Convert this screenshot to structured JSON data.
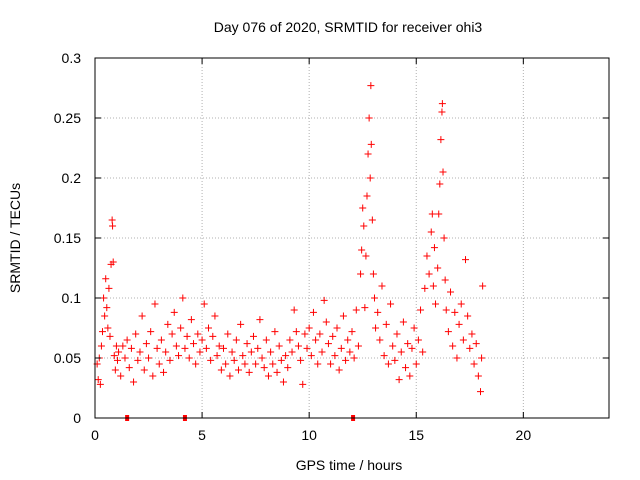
{
  "chart_data": {
    "type": "scatter",
    "title": "Day 076 of 2020, SRMTID for receiver ohi3",
    "xlabel": "GPS time / hours",
    "ylabel": "SRMTID / TECUs",
    "xlim": [
      0,
      24
    ],
    "ylim": [
      0,
      0.3
    ],
    "xticks": [
      0,
      5,
      10,
      15,
      20
    ],
    "xtick_labels": [
      "0",
      "5",
      "10",
      "15",
      "20"
    ],
    "yticks": [
      0,
      0.05,
      0.1,
      0.15,
      0.2,
      0.25,
      0.3
    ],
    "ytick_labels": [
      "0",
      "0.05",
      "0.1",
      "0.15",
      "0.2",
      "0.25",
      "0.3"
    ],
    "grid": true,
    "marker": "+",
    "color": "#ff0000",
    "series": [
      {
        "name": "SRMTID",
        "points": [
          [
            0.1,
            0.045
          ],
          [
            0.15,
            0.032
          ],
          [
            0.2,
            0.05
          ],
          [
            0.25,
            0.028
          ],
          [
            0.3,
            0.06
          ],
          [
            0.35,
            0.072
          ],
          [
            0.4,
            0.1
          ],
          [
            0.45,
            0.085
          ],
          [
            0.5,
            0.116
          ],
          [
            0.55,
            0.092
          ],
          [
            0.6,
            0.075
          ],
          [
            0.65,
            0.108
          ],
          [
            0.7,
            0.068
          ],
          [
            0.75,
            0.128
          ],
          [
            0.8,
            0.165
          ],
          [
            0.82,
            0.16
          ],
          [
            0.85,
            0.13
          ],
          [
            0.9,
            0.052
          ],
          [
            0.95,
            0.04
          ],
          [
            1.0,
            0.06
          ],
          [
            1.05,
            0.048
          ],
          [
            1.1,
            0.055
          ],
          [
            1.2,
            0.035
          ],
          [
            1.3,
            0.06
          ],
          [
            1.4,
            0.05
          ],
          [
            1.5,
            0.065
          ],
          [
            1.6,
            0.042
          ],
          [
            1.7,
            0.058
          ],
          [
            1.8,
            0.03
          ],
          [
            1.9,
            0.07
          ],
          [
            2.0,
            0.048
          ],
          [
            2.1,
            0.055
          ],
          [
            2.2,
            0.085
          ],
          [
            2.3,
            0.04
          ],
          [
            2.4,
            0.062
          ],
          [
            2.5,
            0.05
          ],
          [
            2.6,
            0.072
          ],
          [
            2.7,
            0.035
          ],
          [
            2.8,
            0.095
          ],
          [
            2.9,
            0.058
          ],
          [
            3.0,
            0.045
          ],
          [
            3.1,
            0.065
          ],
          [
            3.2,
            0.038
          ],
          [
            3.3,
            0.055
          ],
          [
            3.4,
            0.078
          ],
          [
            3.5,
            0.048
          ],
          [
            3.6,
            0.07
          ],
          [
            3.7,
            0.088
          ],
          [
            3.8,
            0.06
          ],
          [
            3.9,
            0.052
          ],
          [
            4.0,
            0.075
          ],
          [
            4.1,
            0.1
          ],
          [
            4.2,
            0.058
          ],
          [
            4.3,
            0.068
          ],
          [
            4.4,
            0.05
          ],
          [
            4.5,
            0.082
          ],
          [
            4.6,
            0.062
          ],
          [
            4.7,
            0.045
          ],
          [
            4.8,
            0.07
          ],
          [
            4.9,
            0.055
          ],
          [
            5.0,
            0.065
          ],
          [
            5.1,
            0.095
          ],
          [
            5.2,
            0.058
          ],
          [
            5.3,
            0.075
          ],
          [
            5.4,
            0.048
          ],
          [
            5.5,
            0.068
          ],
          [
            5.6,
            0.085
          ],
          [
            5.7,
            0.052
          ],
          [
            5.8,
            0.06
          ],
          [
            5.9,
            0.04
          ],
          [
            6.0,
            0.058
          ],
          [
            6.1,
            0.045
          ],
          [
            6.2,
            0.07
          ],
          [
            6.3,
            0.035
          ],
          [
            6.4,
            0.055
          ],
          [
            6.5,
            0.048
          ],
          [
            6.6,
            0.065
          ],
          [
            6.7,
            0.04
          ],
          [
            6.8,
            0.078
          ],
          [
            6.9,
            0.052
          ],
          [
            7.0,
            0.045
          ],
          [
            7.1,
            0.062
          ],
          [
            7.2,
            0.038
          ],
          [
            7.3,
            0.055
          ],
          [
            7.4,
            0.068
          ],
          [
            7.5,
            0.045
          ],
          [
            7.6,
            0.058
          ],
          [
            7.7,
            0.082
          ],
          [
            7.8,
            0.05
          ],
          [
            7.9,
            0.042
          ],
          [
            8.0,
            0.065
          ],
          [
            8.1,
            0.035
          ],
          [
            8.2,
            0.055
          ],
          [
            8.3,
            0.045
          ],
          [
            8.4,
            0.072
          ],
          [
            8.5,
            0.038
          ],
          [
            8.6,
            0.06
          ],
          [
            8.7,
            0.048
          ],
          [
            8.8,
            0.03
          ],
          [
            8.9,
            0.052
          ],
          [
            9.0,
            0.042
          ],
          [
            9.1,
            0.065
          ],
          [
            9.2,
            0.055
          ],
          [
            9.3,
            0.09
          ],
          [
            9.4,
            0.072
          ],
          [
            9.5,
            0.06
          ],
          [
            9.6,
            0.048
          ],
          [
            9.7,
            0.028
          ],
          [
            9.8,
            0.07
          ],
          [
            9.9,
            0.058
          ],
          [
            10.0,
            0.075
          ],
          [
            10.1,
            0.052
          ],
          [
            10.2,
            0.088
          ],
          [
            10.3,
            0.065
          ],
          [
            10.4,
            0.045
          ],
          [
            10.5,
            0.07
          ],
          [
            10.6,
            0.055
          ],
          [
            10.7,
            0.098
          ],
          [
            10.8,
            0.08
          ],
          [
            10.9,
            0.062
          ],
          [
            11.0,
            0.045
          ],
          [
            11.1,
            0.068
          ],
          [
            11.2,
            0.052
          ],
          [
            11.3,
            0.075
          ],
          [
            11.4,
            0.04
          ],
          [
            11.5,
            0.058
          ],
          [
            11.6,
            0.085
          ],
          [
            11.7,
            0.048
          ],
          [
            11.8,
            0.065
          ],
          [
            11.9,
            0.055
          ],
          [
            12.0,
            0.072
          ],
          [
            12.1,
            0.05
          ],
          [
            12.2,
            0.09
          ],
          [
            12.3,
            0.06
          ],
          [
            12.4,
            0.12
          ],
          [
            12.45,
            0.14
          ],
          [
            12.5,
            0.175
          ],
          [
            12.55,
            0.16
          ],
          [
            12.6,
            0.092
          ],
          [
            12.65,
            0.135
          ],
          [
            12.7,
            0.185
          ],
          [
            12.75,
            0.22
          ],
          [
            12.8,
            0.25
          ],
          [
            12.85,
            0.2
          ],
          [
            12.88,
            0.277
          ],
          [
            12.9,
            0.228
          ],
          [
            12.95,
            0.165
          ],
          [
            13.0,
            0.12
          ],
          [
            13.05,
            0.1
          ],
          [
            13.1,
            0.075
          ],
          [
            13.2,
            0.088
          ],
          [
            13.3,
            0.065
          ],
          [
            13.4,
            0.11
          ],
          [
            13.5,
            0.052
          ],
          [
            13.6,
            0.078
          ],
          [
            13.7,
            0.045
          ],
          [
            13.8,
            0.095
          ],
          [
            13.9,
            0.06
          ],
          [
            14.0,
            0.048
          ],
          [
            14.1,
            0.07
          ],
          [
            14.2,
            0.032
          ],
          [
            14.3,
            0.055
          ],
          [
            14.4,
            0.08
          ],
          [
            14.5,
            0.042
          ],
          [
            14.6,
            0.062
          ],
          [
            14.7,
            0.035
          ],
          [
            14.8,
            0.058
          ],
          [
            14.9,
            0.075
          ],
          [
            15.0,
            0.045
          ],
          [
            15.1,
            0.065
          ],
          [
            15.2,
            0.09
          ],
          [
            15.3,
            0.055
          ],
          [
            15.4,
            0.108
          ],
          [
            15.5,
            0.135
          ],
          [
            15.6,
            0.12
          ],
          [
            15.7,
            0.155
          ],
          [
            15.75,
            0.17
          ],
          [
            15.8,
            0.11
          ],
          [
            15.85,
            0.142
          ],
          [
            15.9,
            0.095
          ],
          [
            16.0,
            0.125
          ],
          [
            16.05,
            0.17
          ],
          [
            16.1,
            0.195
          ],
          [
            16.15,
            0.232
          ],
          [
            16.2,
            0.255
          ],
          [
            16.22,
            0.262
          ],
          [
            16.25,
            0.205
          ],
          [
            16.3,
            0.15
          ],
          [
            16.35,
            0.115
          ],
          [
            16.4,
            0.09
          ],
          [
            16.5,
            0.072
          ],
          [
            16.6,
            0.105
          ],
          [
            16.7,
            0.06
          ],
          [
            16.8,
            0.088
          ],
          [
            16.9,
            0.05
          ],
          [
            17.0,
            0.078
          ],
          [
            17.1,
            0.095
          ],
          [
            17.2,
            0.065
          ],
          [
            17.3,
            0.132
          ],
          [
            17.4,
            0.085
          ],
          [
            17.5,
            0.058
          ],
          [
            17.6,
            0.07
          ],
          [
            17.7,
            0.045
          ],
          [
            17.8,
            0.062
          ],
          [
            17.9,
            0.035
          ],
          [
            18.0,
            0.022
          ],
          [
            18.05,
            0.05
          ],
          [
            18.1,
            0.11
          ]
        ],
        "zero_markers": [
          1.5,
          4.2,
          12.05
        ]
      }
    ]
  }
}
